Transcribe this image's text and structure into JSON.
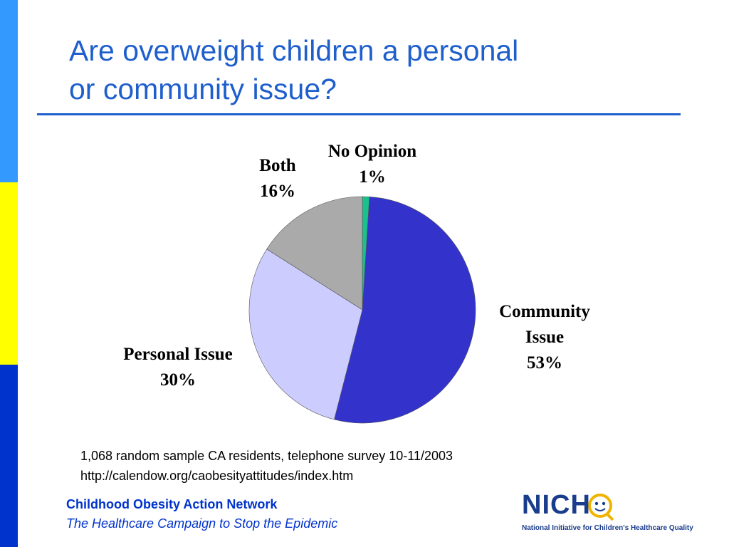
{
  "slide": {
    "title_line1": "Are overweight children a personal",
    "title_line2": "or community issue?",
    "source_line1": "1,068 random sample CA residents, telephone survey 10-11/2003",
    "source_line2": "http://calendow.org/caobesityattitudes/index.htm",
    "footer_line1": "Childhood Obesity Action Network",
    "footer_line2": "The Healthcare Campaign to Stop the Epidemic",
    "logo": {
      "wordmark": "NICHQ",
      "tagline": "National Initiative for Children's Healthcare Quality"
    }
  },
  "colors": {
    "title": "#1f5fcc",
    "footer": "#0033cc",
    "sidebar": [
      "#3399ff",
      "#ffff00",
      "#0033cc"
    ]
  },
  "chart_data": {
    "type": "pie",
    "title": "",
    "slices": [
      {
        "label_lines": [
          "No Opinion",
          "1%"
        ],
        "value": 1,
        "color": "#19c28c"
      },
      {
        "label_lines": [
          "Community",
          "Issue",
          "53%"
        ],
        "value": 53,
        "color": "#3333cc"
      },
      {
        "label_lines": [
          "Personal Issue",
          "30%"
        ],
        "value": 30,
        "color": "#ccccff"
      },
      {
        "label_lines": [
          "Both",
          "16%"
        ],
        "value": 16,
        "color": "#aaaaaa"
      }
    ],
    "start_angle": "12 o'clock",
    "direction": "clockwise",
    "legend": "none (labels beside slices)"
  }
}
